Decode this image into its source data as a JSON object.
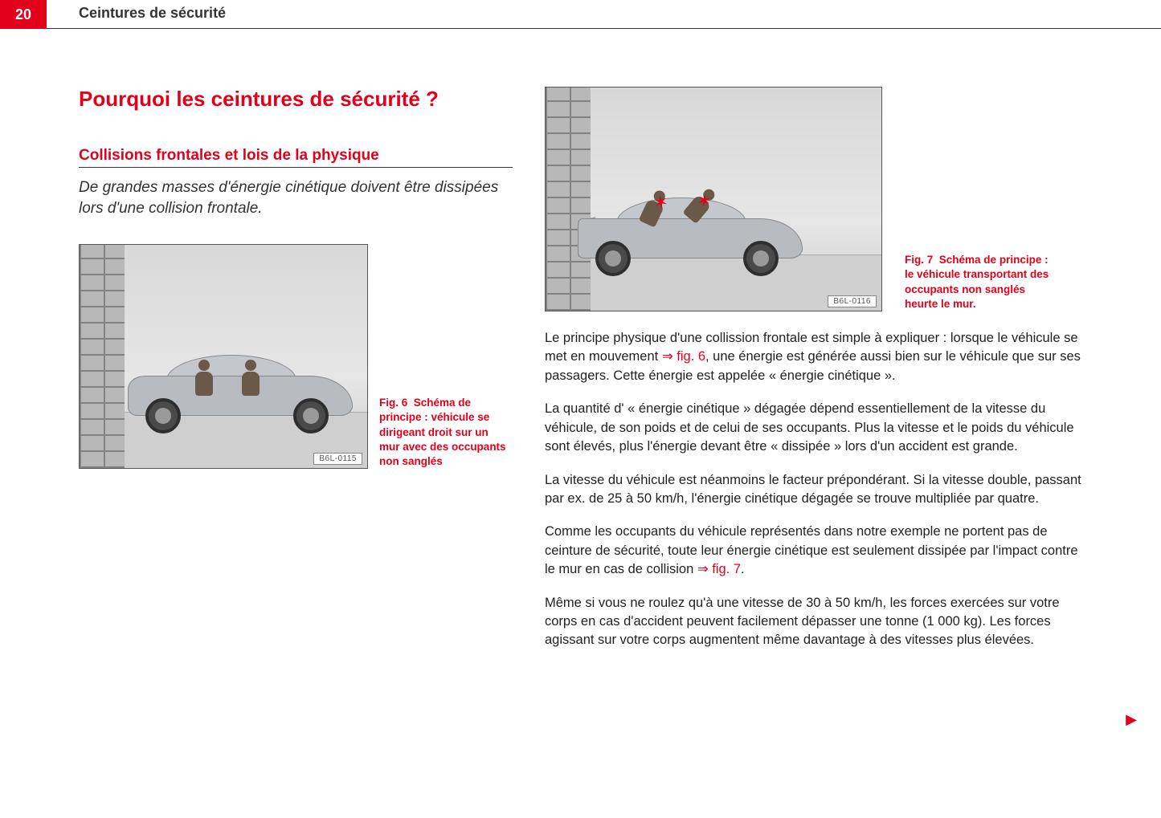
{
  "page_number": "20",
  "chapter_title": "Ceintures de sécurité",
  "heading_main": "Pourquoi les ceintures de sécurité ?",
  "heading_sub": "Collisions frontales et lois de la physique",
  "lead_text": "De grandes masses d'énergie cinétique doivent être dissipées lors d'une collision frontale.",
  "figure6": {
    "id_label": "B6L-0115",
    "caption_prefix": "Fig. 6",
    "caption_text": "Schéma de principe : véhicule se dirigeant droit sur un mur avec des occupants non sanglés"
  },
  "figure7": {
    "id_label": "B6L-0116",
    "caption_prefix": "Fig. 7",
    "caption_text": "Schéma de principe : le véhicule transportant des occupants non sanglés heurte le mur."
  },
  "paragraphs": {
    "p1_a": "Le principe physique d'une collission frontale est simple à expliquer : lorsque le véhicule se met en mouvement ",
    "p1_ref": "⇒ fig. 6",
    "p1_b": ", une énergie est générée aussi bien sur le véhicule que sur ses passagers. Cette énergie est appelée « énergie cinétique ».",
    "p2": "La quantité d' « énergie cinétique » dégagée dépend essentiellement de la vitesse du véhicule, de son poids et de celui de ses occupants. Plus la vitesse et le poids du véhicule sont élevés, plus l'énergie devant être « dissipée » lors d'un accident est grande.",
    "p3": "La vitesse du véhicule est néanmoins le facteur prépondérant. Si la vitesse double, passant par ex. de 25 à 50 km/h, l'énergie cinétique dégagée se trouve multipliée par quatre.",
    "p4_a": "Comme les occupants du véhicule représentés dans notre exemple ne portent pas de ceinture de sécurité, toute leur énergie cinétique est seulement dissipée par l'impact contre le mur en cas de collision ",
    "p4_ref": "⇒ fig. 7",
    "p4_b": ".",
    "p5": "Même si vous ne roulez qu'à une vitesse de 30 à 50 km/h, les forces exercées sur votre corps en cas d'accident peuvent facilement dépasser une tonne (1 000 kg). Les forces agissant sur votre corps augmentent même davantage à des vitesses plus élevées."
  },
  "continue_glyph": "▶",
  "colors": {
    "accent": "#e2001a",
    "text": "#222222"
  }
}
